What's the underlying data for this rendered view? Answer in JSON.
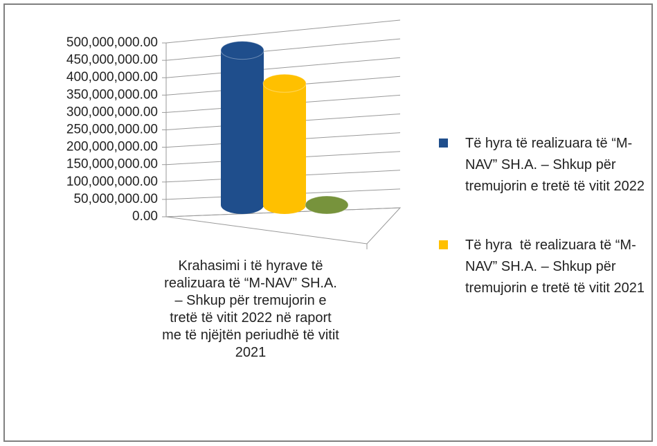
{
  "chart_data": {
    "type": "bar3d",
    "title": "Krahasimi i të hyrave të realizuara të “M-NAV” SH.A. – Shkup për tremujorin e tretë të vitit 2022 në raport me të njëjtën periudhë të vitit 2021",
    "series": [
      {
        "name": "Të hyra të realizuara të “M-NAV” SH.A. – Shkup për tremujorin e tretë të vitit 2022",
        "color": "#1f4e8c",
        "values": [
          445000000
        ]
      },
      {
        "name": "Të hyra  të realizuara të “M-NAV” SH.A. – Shkup për tremujorin e tretë të vitit 2021",
        "color": "#ffc000",
        "values": [
          350000000
        ]
      },
      {
        "name": null,
        "color": "#77933c",
        "values": [
          0
        ]
      }
    ],
    "ylim": [
      0,
      500000000
    ],
    "yticks": [
      {
        "value": 0,
        "label": "0.00"
      },
      {
        "value": 50000000,
        "label": "50,000,000.00"
      },
      {
        "value": 100000000,
        "label": "100,000,000.00"
      },
      {
        "value": 150000000,
        "label": "150,000,000.00"
      },
      {
        "value": 200000000,
        "label": "200,000,000.00"
      },
      {
        "value": 250000000,
        "label": "250,000,000.00"
      },
      {
        "value": 300000000,
        "label": "300,000,000.00"
      },
      {
        "value": 350000000,
        "label": "350,000,000.00"
      },
      {
        "value": 400000000,
        "label": "400,000,000.00"
      },
      {
        "value": 450000000,
        "label": "450,000,000.00"
      },
      {
        "value": 500000000,
        "label": "500,000,000.00"
      }
    ],
    "grid": true
  }
}
